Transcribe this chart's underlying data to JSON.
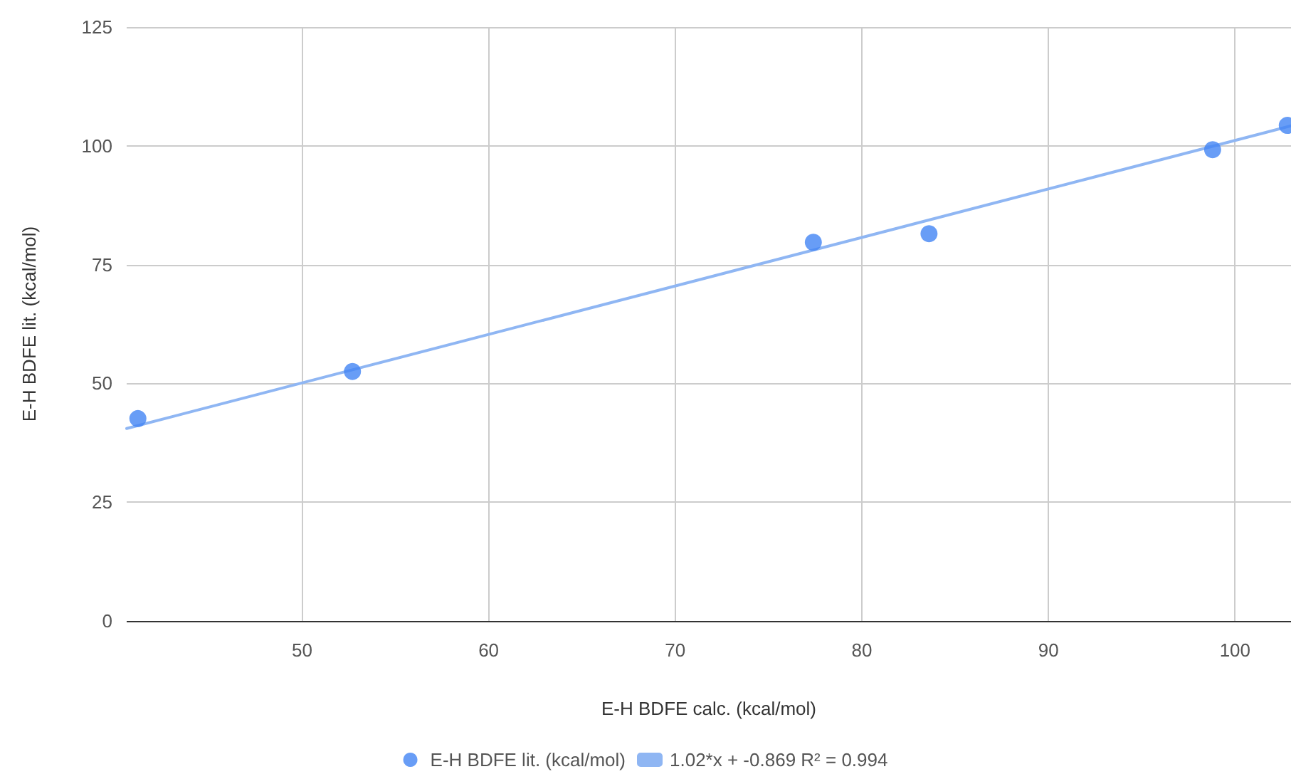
{
  "chart_data": {
    "type": "scatter",
    "xlabel": "E-H BDFE calc. (kcal/mol)",
    "ylabel": "E-H BDFE lit. (kcal/mol)",
    "series": [
      {
        "name": "E-H BDFE lit. (kcal/mol)",
        "color": "#4285f4",
        "marker": "circle",
        "x": [
          41.2,
          52.7,
          77.4,
          83.6,
          98.8,
          102.8
        ],
        "values": [
          42.6,
          52.5,
          79.7,
          81.5,
          99.2,
          104.3
        ]
      },
      {
        "name": "1.02*x + -0.869 R² = 0.994",
        "type": "line",
        "color": "#8fb6f3",
        "marker": "none",
        "x": [
          40.6,
          103
        ],
        "values": [
          40.5,
          104.2
        ]
      }
    ],
    "xlim": [
      40.6,
      103
    ],
    "xticks": [
      50,
      60,
      70,
      80,
      90,
      100
    ],
    "ylim": [
      0,
      125
    ],
    "yticks": [
      0,
      25,
      50,
      75,
      100,
      125
    ],
    "grid": true,
    "legend": "bottom"
  }
}
